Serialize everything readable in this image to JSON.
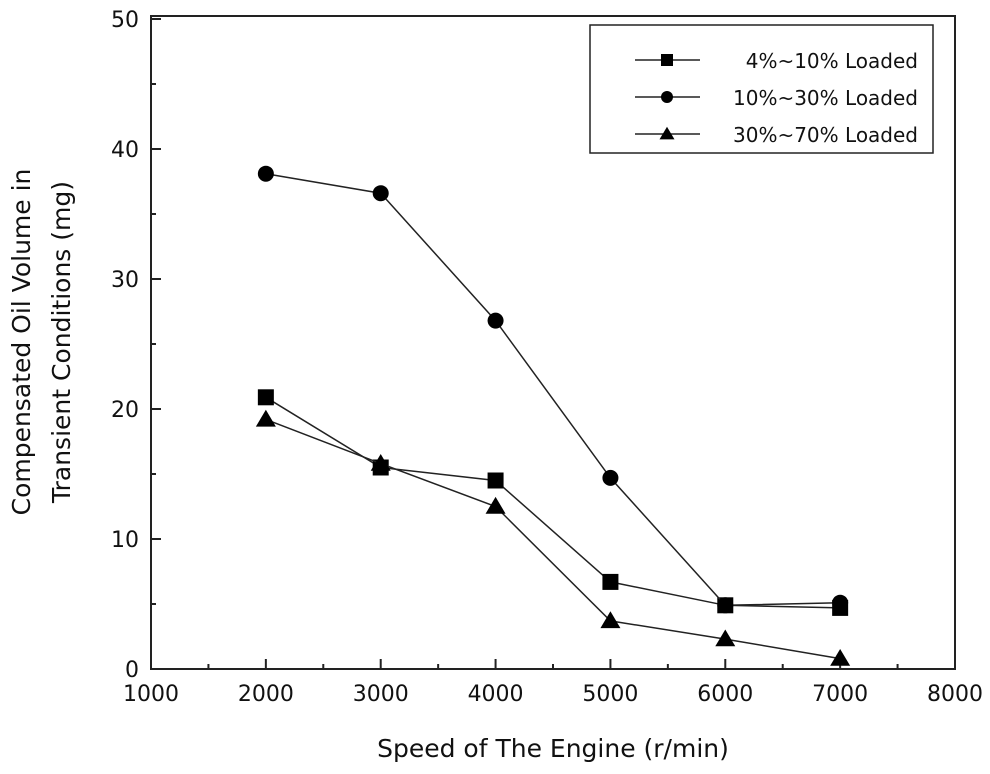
{
  "chart_data": {
    "type": "line",
    "title": "",
    "xlabel": "Speed of The Engine (r/min)",
    "ylabel_lines": [
      "Compensated Oil Volume in",
      "Transient Conditions (mg)"
    ],
    "xlim": [
      1000,
      8000
    ],
    "ylim": [
      0,
      50
    ],
    "xticks": [
      1000,
      2000,
      3000,
      4000,
      5000,
      6000,
      7000,
      8000
    ],
    "yticks": [
      0,
      10,
      20,
      30,
      40,
      50
    ],
    "grid": false,
    "legend_position": "top-right",
    "x": [
      2000,
      3000,
      4000,
      5000,
      6000,
      7000
    ],
    "series": [
      {
        "name": "4%~10% Loaded",
        "marker": "square",
        "values": [
          20.9,
          15.5,
          14.5,
          6.7,
          4.9,
          4.7
        ]
      },
      {
        "name": "10%~30% Loaded",
        "marker": "circle",
        "values": [
          38.1,
          36.6,
          26.8,
          14.7,
          4.9,
          5.1
        ]
      },
      {
        "name": "30%~70% Loaded",
        "marker": "triangle",
        "values": [
          19.2,
          15.8,
          12.5,
          3.7,
          2.3,
          0.8
        ]
      }
    ],
    "colors": {
      "line": "#222222",
      "marker": "#000000"
    }
  }
}
